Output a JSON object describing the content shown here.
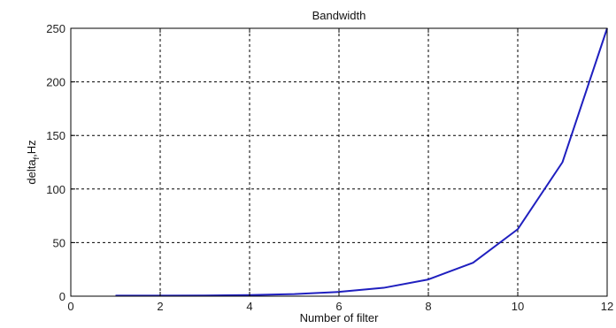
{
  "chart_data": {
    "type": "line",
    "title": "Bandwidth",
    "xlabel": "Number of filter",
    "ylabel": "delta",
    "ylabel_subscript": "f",
    "ylabel_unit": ",Hz",
    "xlim": [
      0,
      12
    ],
    "ylim": [
      0,
      250
    ],
    "xticks": [
      0,
      2,
      4,
      6,
      8,
      10,
      12
    ],
    "yticks": [
      0,
      50,
      100,
      150,
      200,
      250
    ],
    "grid": true,
    "grid_style": "dashed",
    "legend": "none",
    "series": [
      {
        "color": "#1f1fbf",
        "x": [
          1,
          2,
          3,
          4,
          5,
          6,
          7,
          8,
          9,
          10,
          11,
          12
        ],
        "y": [
          0.5,
          0.5,
          0.6,
          1,
          2,
          4,
          7.8,
          15.6,
          31.2,
          62.5,
          125,
          250
        ]
      }
    ]
  }
}
